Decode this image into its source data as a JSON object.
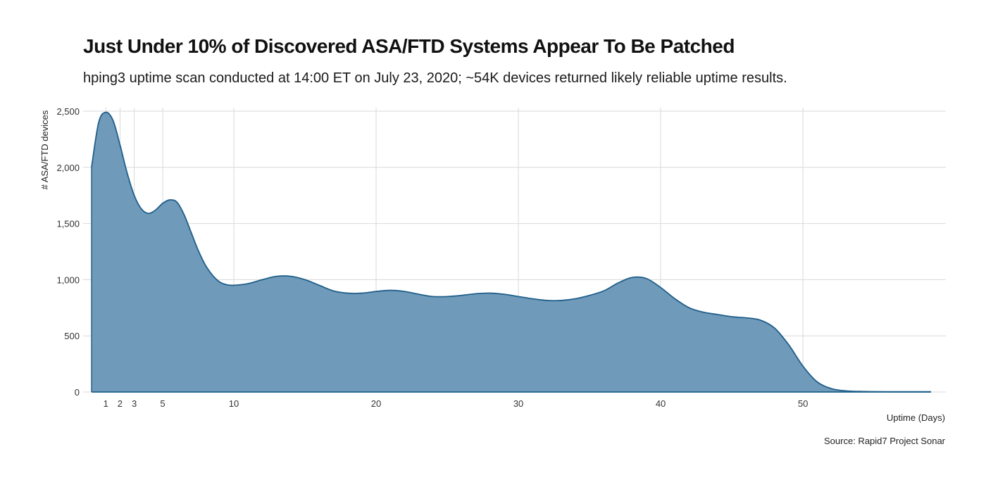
{
  "chart_data": {
    "type": "area",
    "title": "Just Under 10% of Discovered ASA/FTD Systems Appear To Be Patched",
    "subtitle": "hping3 uptime scan conducted at 14:00 ET on July 23, 2020; ~54K devices returned likely reliable uptime results.",
    "xlabel": "Uptime (Days)",
    "ylabel": "# ASA/FTD devices",
    "caption": "Source: Rapid7 Project Sonar",
    "xlim": [
      0,
      59.5
    ],
    "ylim": [
      0,
      2500
    ],
    "x_ticks": [
      1,
      2,
      3,
      5,
      10,
      20,
      30,
      40,
      50
    ],
    "y_ticks": [
      0,
      500,
      1000,
      1500,
      2000,
      2500
    ],
    "y_tick_labels": [
      "0",
      "500",
      "1,000",
      "1,500",
      "2,000",
      "2,500"
    ],
    "grid": true,
    "legend": "none",
    "fill_color": "#6d98b8",
    "line_color": "#1f5f8b",
    "series": [
      {
        "x": [
          0,
          0.5,
          1,
          1.5,
          2,
          2.5,
          3,
          3.5,
          4,
          4.5,
          5,
          5.5,
          6,
          6.5,
          7,
          7.5,
          8,
          8.5,
          9,
          9.5,
          10,
          11,
          12,
          13,
          14,
          15,
          16,
          17,
          18,
          19,
          20,
          21,
          22,
          23,
          24,
          25,
          26,
          27,
          28,
          29,
          30,
          31,
          32,
          33,
          34,
          35,
          36,
          37,
          38,
          39,
          40,
          41,
          42,
          43,
          44,
          45,
          46,
          47,
          48,
          49,
          50,
          51,
          52,
          53,
          54,
          55,
          56,
          57,
          58,
          59
        ],
        "y": [
          2000,
          2400,
          2490,
          2420,
          2200,
          1950,
          1750,
          1630,
          1590,
          1620,
          1680,
          1710,
          1690,
          1580,
          1420,
          1260,
          1130,
          1040,
          980,
          955,
          950,
          965,
          1000,
          1030,
          1030,
          1000,
          950,
          900,
          880,
          880,
          895,
          905,
          895,
          870,
          850,
          850,
          860,
          875,
          880,
          870,
          850,
          830,
          815,
          815,
          830,
          860,
          900,
          970,
          1020,
          1010,
          930,
          830,
          750,
          710,
          690,
          670,
          660,
          640,
          570,
          420,
          230,
          90,
          30,
          10,
          5,
          3,
          2,
          2,
          2,
          2
        ]
      }
    ]
  }
}
